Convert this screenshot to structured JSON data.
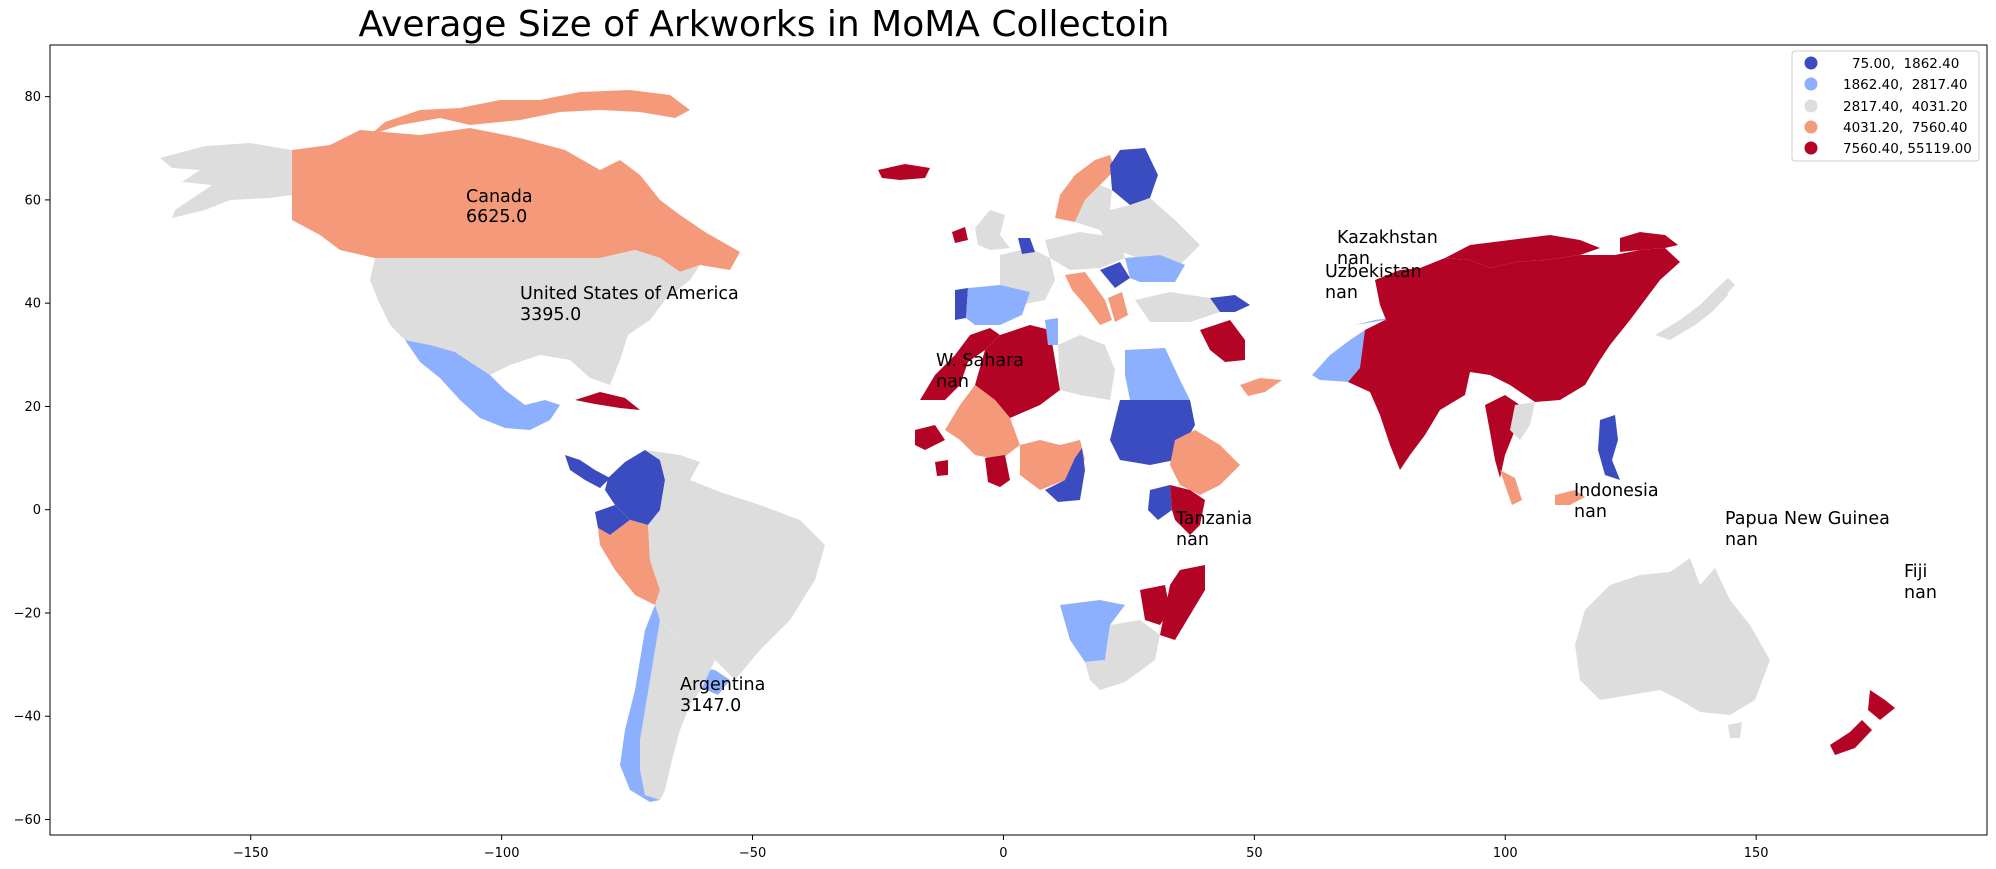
{
  "title": "Average Size of Arkworks in MoMA Collectoin",
  "colors": {
    "class1": "#3b4cc0",
    "class2": "#8db0fe",
    "class3": "#dddddd",
    "class4": "#f49a7b",
    "class5": "#b40426"
  },
  "axes": {
    "x_ticks": [
      -150,
      -100,
      -50,
      0,
      50,
      100,
      150
    ],
    "y_ticks": [
      80,
      60,
      40,
      20,
      0,
      -20,
      -40,
      -60
    ],
    "xlim": [
      -190,
      196
    ],
    "ylim": [
      -63,
      90
    ]
  },
  "legend": {
    "placement": "top-right",
    "entries": [
      {
        "label": "75.00,  1862.40",
        "class": "class1"
      },
      {
        "label": "1862.40,  2817.40",
        "class": "class2"
      },
      {
        "label": "2817.40,  4031.20",
        "class": "class3"
      },
      {
        "label": "4031.20,  7560.40",
        "class": "class4"
      },
      {
        "label": "7560.40, 55119.00",
        "class": "class5"
      }
    ]
  },
  "annotations": [
    {
      "name": "Canada",
      "value": "6625.0"
    },
    {
      "name": "United States of America",
      "value": "3395.0"
    },
    {
      "name": "W. Sahara",
      "value": "nan"
    },
    {
      "name": "Kazakhstan",
      "value": "nan"
    },
    {
      "name": "Uzbekistan",
      "value": "nan"
    },
    {
      "name": "Argentina",
      "value": "3147.0"
    },
    {
      "name": "Tanzania",
      "value": "nan"
    },
    {
      "name": "Indonesia",
      "value": "nan"
    },
    {
      "name": "Papua New Guinea",
      "value": "nan"
    },
    {
      "name": "Fiji",
      "value": "nan"
    }
  ]
}
